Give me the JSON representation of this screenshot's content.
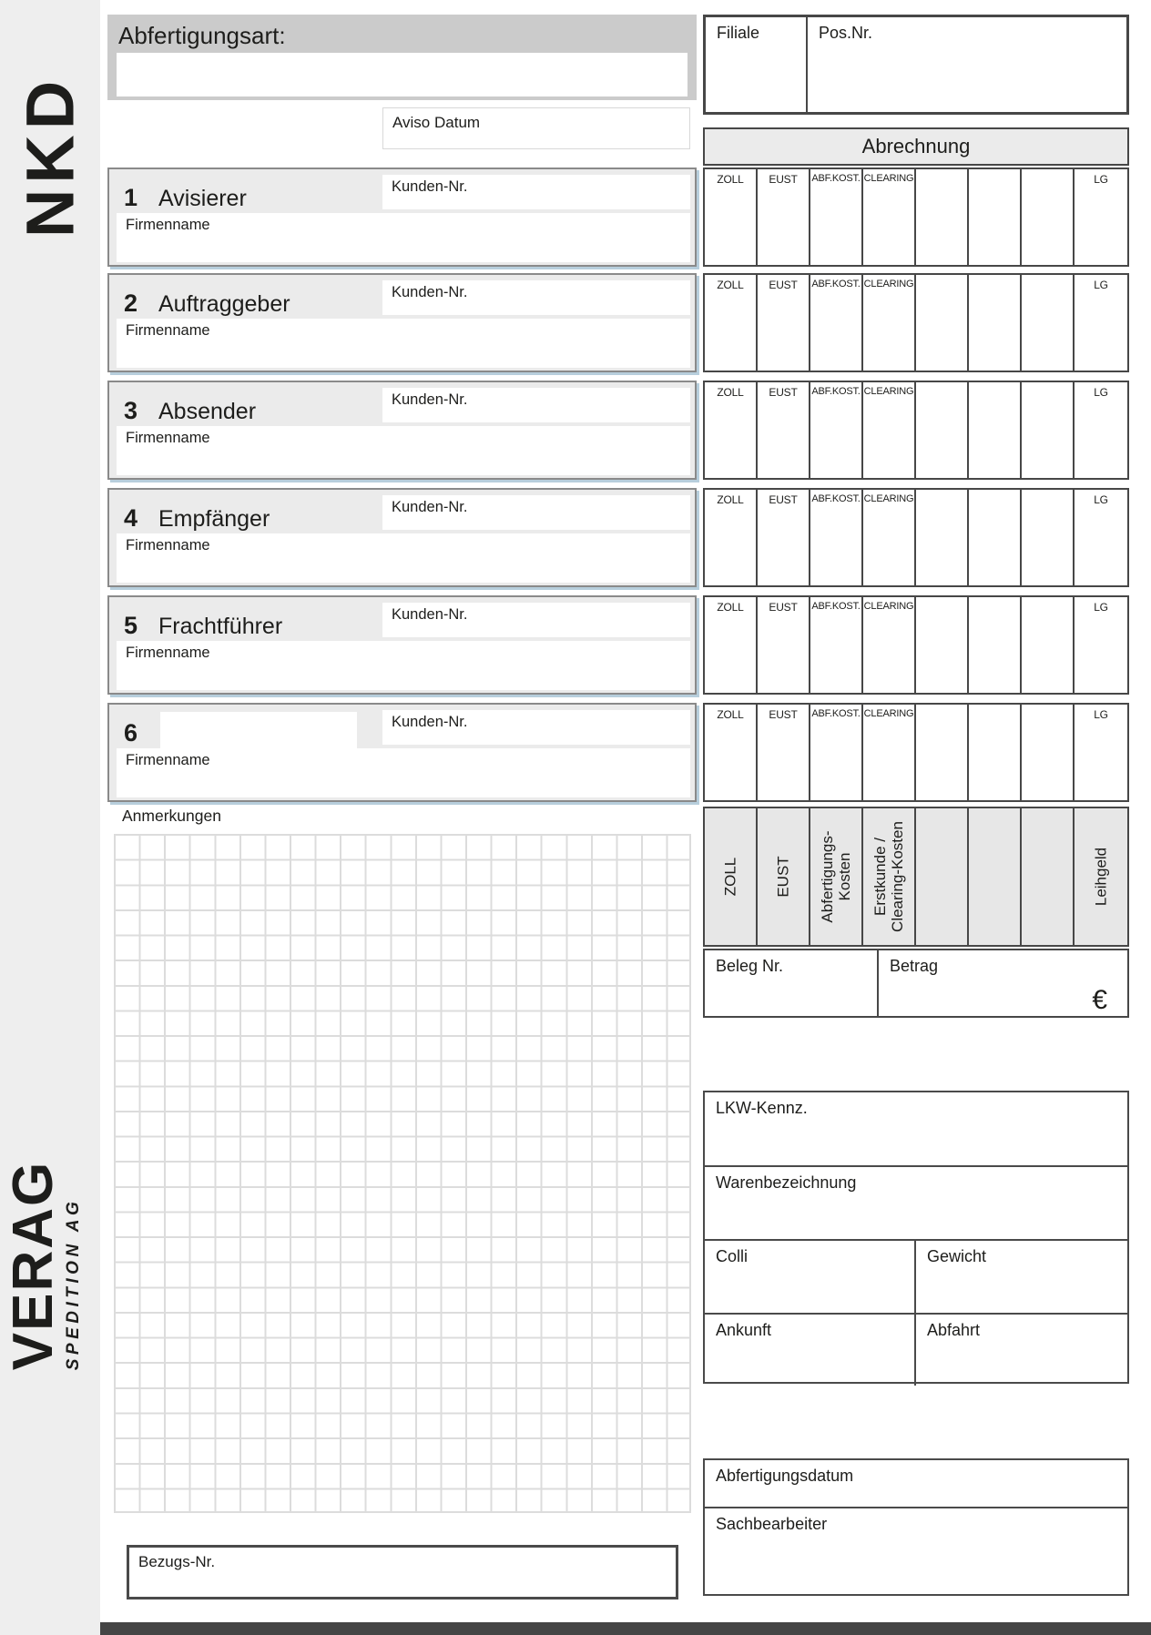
{
  "brand": {
    "logo": "NKD",
    "company": "VERAG",
    "company_sub": "SPEDITION AG"
  },
  "header": {
    "abfertigungsart_label": "Abfertigungsart:",
    "aviso_datum_label": "Aviso Datum",
    "filiale_label": "Filiale",
    "pos_nr_label": "Pos.Nr."
  },
  "sections": [
    {
      "number": "1",
      "role": "Avisierer",
      "kunden_label": "Kunden-Nr.",
      "firma_label": "Firmenname"
    },
    {
      "number": "2",
      "role": "Auftraggeber",
      "kunden_label": "Kunden-Nr.",
      "firma_label": "Firmenname"
    },
    {
      "number": "3",
      "role": "Absender",
      "kunden_label": "Kunden-Nr.",
      "firma_label": "Firmenname"
    },
    {
      "number": "4",
      "role": "Empfänger",
      "kunden_label": "Kunden-Nr.",
      "firma_label": "Firmenname"
    },
    {
      "number": "5",
      "role": "Frachtführer",
      "kunden_label": "Kunden-Nr.",
      "firma_label": "Firmenname"
    },
    {
      "number": "6",
      "role": "",
      "kunden_label": "Kunden-Nr.",
      "firma_label": "Firmenname"
    }
  ],
  "abrechnung": {
    "title": "Abrechnung",
    "row_count": 6,
    "row_columns": [
      "ZOLL",
      "EUST",
      "ABF.KOST.",
      "CLEARING",
      "",
      "",
      "",
      "LG"
    ],
    "footer_columns": [
      "ZOLL",
      "EUST",
      "Abfertigungs-\nKosten",
      "Erstkunde /\nClearing-Kosten",
      "",
      "",
      "",
      "Leihgeld"
    ],
    "beleg_label": "Beleg Nr.",
    "betrag_label": "Betrag",
    "currency": "€"
  },
  "anmerkungen_label": "Anmerkungen",
  "shipment": {
    "lkw_label": "LKW-Kennz.",
    "waren_label": "Warenbezeichnung",
    "colli_label": "Colli",
    "gewicht_label": "Gewicht",
    "ankunft_label": "Ankunft",
    "abfahrt_label": "Abfahrt"
  },
  "processing": {
    "datum_label": "Abfertigungsdatum",
    "sachbearbeiter_label": "Sachbearbeiter"
  },
  "bezugs_label": "Bezugs-Nr.",
  "colors": {
    "sidebar_bg": "#eeeeee",
    "panel_gray": "#cbcbcb",
    "section_bg": "#ebebeb",
    "border_dark": "#474747",
    "shadow_blue": "#b7cedc",
    "grid_line": "#dcdcdc",
    "footer_bar": "#454545",
    "text": "#1d1d1b"
  }
}
